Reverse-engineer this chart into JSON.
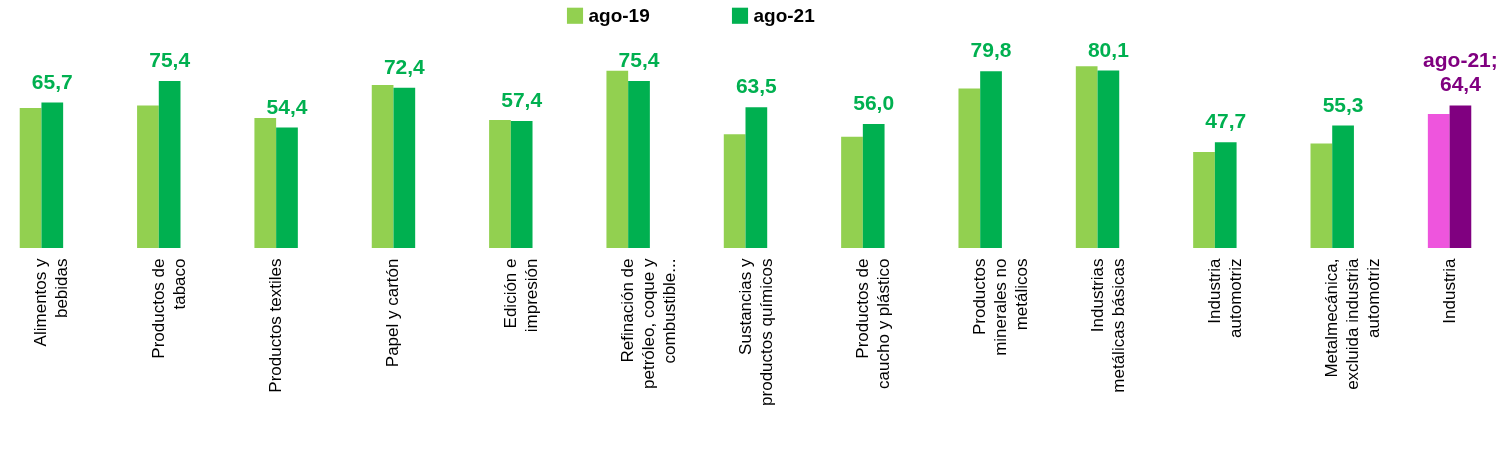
{
  "chart_data": {
    "type": "bar",
    "categories": [
      "Alimentos y bebidas",
      "Productos de tabaco",
      "Productos textiles",
      "Papel y cartón",
      "Edición e impresión",
      "Refinación de petróleo, coque y combustible...",
      "Sustancias y productos químicos",
      "Productos de caucho y plástico",
      "Productos minerales no metálicos",
      "Industrias metálicas básicas",
      "Industria automotriz",
      "Metalmecánica, excluida industria automotriz",
      "Industria"
    ],
    "series": [
      {
        "name": "ago-19",
        "color": "#92d050",
        "colors": [
          "#92d050",
          "#92d050",
          "#92d050",
          "#92d050",
          "#92d050",
          "#92d050",
          "#92d050",
          "#92d050",
          "#92d050",
          "#92d050",
          "#92d050",
          "#92d050",
          "#ee55dd"
        ],
        "values": [
          63.2,
          64.4,
          58.7,
          73.6,
          57.8,
          80.0,
          51.4,
          50.2,
          72.0,
          82.1,
          43.4,
          47.2,
          60.5
        ]
      },
      {
        "name": "ago-21",
        "color": "#00b050",
        "colors": [
          "#00b050",
          "#00b050",
          "#00b050",
          "#00b050",
          "#00b050",
          "#00b050",
          "#00b050",
          "#00b050",
          "#00b050",
          "#00b050",
          "#00b050",
          "#00b050",
          "#800080"
        ],
        "values": [
          65.7,
          75.4,
          54.4,
          72.4,
          57.4,
          75.4,
          63.5,
          56.0,
          79.8,
          80.1,
          47.7,
          55.3,
          64.4
        ],
        "value_labels": [
          "65,7",
          "75,4",
          "54,4",
          "72,4",
          "57,4",
          "75,4",
          "63,5",
          "56,0",
          "79,8",
          "80,1",
          "47,7",
          "55,3",
          "ago-21; 64,4"
        ]
      }
    ],
    "legend": "top",
    "tick_labels": "x"
  }
}
